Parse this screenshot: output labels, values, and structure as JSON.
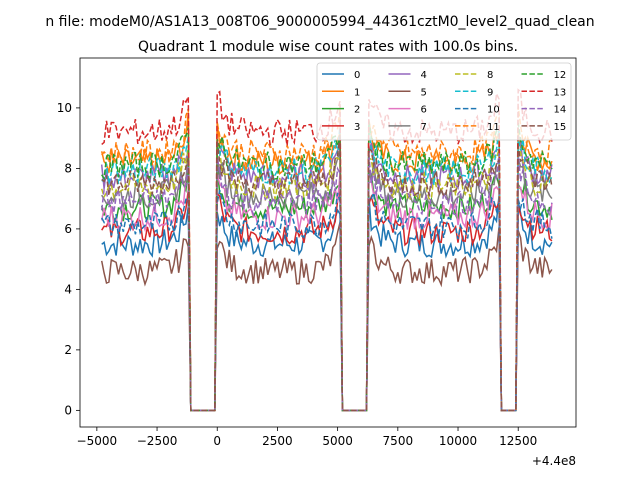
{
  "figure": {
    "suptitle": "n file: modeM0/AS1A13_008T06_9000005994_44361cztM0_level2_quad_clean"
  },
  "chart_data": {
    "type": "line",
    "title": "Quadrant 1 module wise count rates with 100.0s bins.",
    "xlabel": "",
    "ylabel": "",
    "x_offset_label": "+4.4e8",
    "xlim": [
      -5700,
      14900
    ],
    "ylim": [
      -0.55,
      11.65
    ],
    "xticks": [
      -5000,
      -2500,
      0,
      2500,
      5000,
      7500,
      10000,
      12500
    ],
    "xtick_labels": [
      "−5000",
      "−2500",
      "0",
      "2500",
      "5000",
      "7500",
      "10000",
      "12500"
    ],
    "yticks": [
      0,
      2,
      4,
      6,
      8,
      10
    ],
    "ytick_labels": [
      "0",
      "2",
      "4",
      "6",
      "8",
      "10"
    ],
    "grid": false,
    "legend": {
      "placement": "top-right",
      "columns": 4
    },
    "x_range": [
      -4800,
      13900
    ],
    "bin_size": 100,
    "gaps": [
      {
        "start": -1100,
        "end": -100
      },
      {
        "start": 5200,
        "end": 6200
      },
      {
        "start": 11800,
        "end": 12400
      }
    ],
    "series": [
      {
        "name": "0",
        "color": "#1f77b4",
        "dash": "solid",
        "level": 5.5
      },
      {
        "name": "1",
        "color": "#ff7f0e",
        "dash": "solid",
        "level": 8.2
      },
      {
        "name": "2",
        "color": "#2ca02c",
        "dash": "solid",
        "level": 6.7
      },
      {
        "name": "3",
        "color": "#d62728",
        "dash": "solid",
        "level": 5.9
      },
      {
        "name": "4",
        "color": "#9467bd",
        "dash": "solid",
        "level": 7.7
      },
      {
        "name": "5",
        "color": "#8c564b",
        "dash": "solid",
        "level": 4.6
      },
      {
        "name": "6",
        "color": "#e377c2",
        "dash": "solid",
        "level": 6.4
      },
      {
        "name": "7",
        "color": "#7f7f7f",
        "dash": "solid",
        "level": 7.1
      },
      {
        "name": "8",
        "color": "#bcbd22",
        "dash": "dashed",
        "level": 7.4
      },
      {
        "name": "9",
        "color": "#17becf",
        "dash": "dashed",
        "level": 7.9
      },
      {
        "name": "10",
        "color": "#1f77b4",
        "dash": "dashed",
        "level": 6.1
      },
      {
        "name": "11",
        "color": "#ff7f0e",
        "dash": "dashed",
        "level": 8.5
      },
      {
        "name": "12",
        "color": "#2ca02c",
        "dash": "dashed",
        "level": 8.1
      },
      {
        "name": "13",
        "color": "#d62728",
        "dash": "dashed",
        "level": 9.2
      },
      {
        "name": "14",
        "color": "#9467bd",
        "dash": "dashed",
        "level": 6.9
      },
      {
        "name": "15",
        "color": "#8c564b",
        "dash": "dashed",
        "level": 7.5
      }
    ]
  }
}
